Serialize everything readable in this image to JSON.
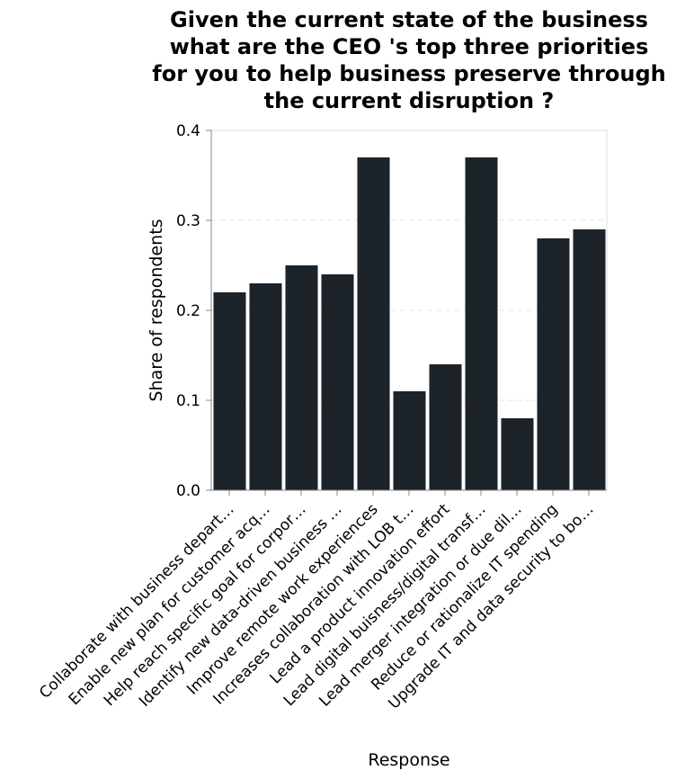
{
  "chart_data": {
    "type": "bar",
    "title_lines": [
      "Given the current state of the business",
      "what are the CEO 's top three priorities",
      "for you to help business preserve through",
      "the current disruption ?"
    ],
    "xlabel": "Response",
    "ylabel": "Share of respondents",
    "ylim": [
      0,
      0.4
    ],
    "yticks": [
      "0.0",
      "0.1",
      "0.2",
      "0.3",
      "0.4"
    ],
    "grid": true,
    "categories": [
      "Collaborate with business depart…",
      "Enable new plan for customer acq…",
      "Help reach specific goal for corpor…",
      "Identify new data-driven business …",
      "Improve remote work experiences",
      "Increases collaboration with LOB t…",
      "Lead a product innovation effort",
      "Lead digital buisness/digital transf…",
      "Lead merger integration or due dil…",
      "Reduce or rationalize IT spending",
      "Upgrade IT and data security to bo…"
    ],
    "values": [
      0.22,
      0.23,
      0.25,
      0.24,
      0.37,
      0.11,
      0.14,
      0.37,
      0.08,
      0.28,
      0.29
    ],
    "bar_color": "#1c2329"
  }
}
